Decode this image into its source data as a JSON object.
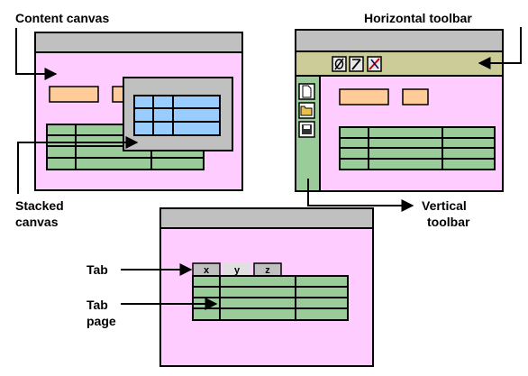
{
  "labels": {
    "content_canvas": "Content canvas",
    "horizontal_toolbar": "Horizontal toolbar",
    "stacked_canvas": [
      "Stacked",
      "canvas"
    ],
    "vertical_toolbar": [
      "Vertical",
      "toolbar"
    ],
    "tab": "Tab",
    "tab_page": [
      "Tab",
      "page"
    ]
  },
  "tabs": [
    "x",
    "y",
    "z"
  ],
  "colors": {
    "titlebar": "#c0c0c0",
    "canvas": "#ffccff",
    "field": "#ffcc99",
    "grid": "#99cc99",
    "stacked_grid": "#99ccff",
    "toolbar": "#cccc99",
    "vertical_toolbar": "#99cc99"
  },
  "icons": {
    "horizontal_toolbar": [
      "slash-pen-icon",
      "pencil-icon",
      "delete-icon"
    ],
    "vertical_toolbar": [
      "new-file-icon",
      "open-folder-icon",
      "save-disk-icon"
    ]
  }
}
